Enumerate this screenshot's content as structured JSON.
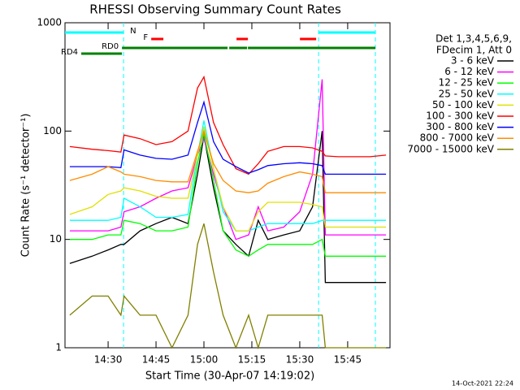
{
  "chart_data": {
    "type": "line",
    "title": "RHESSI Observing Summary Count Rates",
    "x_label": "Start Time (30-Apr-07 14:19:02)",
    "y_label": "Count Rate (s⁻¹ detector⁻¹)",
    "legend_header": [
      "Det 1,3,4,5,6,9,",
      "FDecim 1, Att 0"
    ],
    "footer": "14-Oct-2021 22:24",
    "log_y": true,
    "xlim": [
      "14:16:30",
      "15:58:15"
    ],
    "xticks": [
      "14:30",
      "14:45",
      "15:00",
      "15:15",
      "15:30",
      "15:45"
    ],
    "ylim": [
      1,
      1000
    ],
    "yticks": [
      1,
      10,
      100,
      1000
    ],
    "x": [
      "14:18",
      "14:25",
      "14:30",
      "14:34",
      "14:35",
      "14:40",
      "14:45",
      "14:50",
      "14:55",
      "14:58",
      "15:00",
      "15:03",
      "15:06",
      "15:10",
      "15:14",
      "15:17",
      "15:20",
      "15:25",
      "15:30",
      "15:34",
      "15:37",
      "15:38",
      "15:42",
      "15:47",
      "15:52",
      "15:57"
    ],
    "series": [
      {
        "name": "3 - 6 keV",
        "color": "#000000",
        "values": [
          6,
          7,
          8,
          9,
          9,
          12,
          14,
          16,
          14,
          40,
          90,
          30,
          12,
          9,
          7,
          15,
          10,
          11,
          12,
          20,
          100,
          4,
          4,
          4,
          4,
          4
        ]
      },
      {
        "name": "6 - 12 keV",
        "color": "#ff00ff",
        "values": [
          12,
          12,
          12,
          13,
          18,
          20,
          24,
          28,
          30,
          60,
          85,
          40,
          20,
          10,
          11,
          20,
          12,
          13,
          18,
          40,
          300,
          11,
          11,
          11,
          11,
          11
        ]
      },
      {
        "name": "12 - 25 keV",
        "color": "#00ff00",
        "values": [
          10,
          10,
          11,
          11,
          15,
          14,
          12,
          12,
          13,
          50,
          95,
          35,
          12,
          8,
          7,
          8,
          9,
          9,
          9,
          9,
          10,
          7,
          7,
          7,
          7,
          7
        ]
      },
      {
        "name": "25 - 50 keV",
        "color": "#00ffff",
        "values": [
          15,
          15,
          15,
          16,
          24,
          20,
          16,
          16,
          17,
          60,
          125,
          45,
          18,
          12,
          12,
          13,
          14,
          14,
          14,
          14,
          15,
          15,
          15,
          15,
          15,
          15
        ]
      },
      {
        "name": "50 - 100 keV",
        "color": "#e0e000",
        "values": [
          17,
          20,
          26,
          28,
          30,
          28,
          25,
          24,
          24,
          60,
          110,
          45,
          20,
          12,
          12,
          18,
          22,
          22,
          22,
          21,
          20,
          13,
          13,
          13,
          13,
          13
        ]
      },
      {
        "name": "100 - 300 keV",
        "color": "#ff0000",
        "values": [
          72,
          68,
          66,
          64,
          92,
          85,
          75,
          80,
          100,
          250,
          316,
          120,
          75,
          45,
          40,
          50,
          65,
          72,
          72,
          70,
          65,
          59,
          58,
          58,
          58,
          60
        ]
      },
      {
        "name": "300 - 800 keV",
        "color": "#0000ff",
        "values": [
          47,
          47,
          47,
          46,
          67,
          60,
          56,
          55,
          60,
          120,
          185,
          80,
          55,
          47,
          41,
          44,
          48,
          50,
          51,
          50,
          48,
          40,
          40,
          40,
          40,
          40
        ]
      },
      {
        "name": "800 - 7000 keV",
        "color": "#ff8c00",
        "values": [
          35,
          40,
          47,
          42,
          40,
          38,
          35,
          34,
          34,
          65,
          100,
          50,
          35,
          28,
          27,
          28,
          33,
          38,
          42,
          40,
          38,
          27,
          27,
          27,
          27,
          27
        ]
      },
      {
        "name": "7000 - 15000 keV",
        "color": "#808000",
        "values": [
          2,
          3,
          3,
          2,
          3,
          2,
          2,
          1,
          2,
          9,
          14,
          5,
          2,
          1,
          2,
          1,
          2,
          2,
          2,
          2,
          2,
          1,
          1,
          1,
          1,
          1
        ]
      }
    ],
    "annotations": [
      {
        "label": "N",
        "color": "#00ffff",
        "intervals": [
          [
            "14:16:30",
            "14:34:50"
          ],
          [
            "15:35:54",
            "15:53:40"
          ]
        ]
      },
      {
        "label": "F",
        "color": "#ff0000",
        "intervals": [
          [
            "14:43:30",
            "14:47:18"
          ],
          [
            "15:10:12",
            "15:13:46"
          ],
          [
            "15:30:03",
            "15:35:08"
          ]
        ]
      },
      {
        "label": "RD0",
        "color": "#008000",
        "intervals": [
          [
            "14:34:20",
            "15:07:24"
          ],
          [
            "15:07:55",
            "15:13:30"
          ],
          [
            "15:13:46",
            "15:53:40"
          ]
        ]
      },
      {
        "label": "RD4",
        "color": "#008000",
        "intervals": [
          [
            "14:21:36",
            "14:34:20"
          ]
        ]
      }
    ]
  }
}
